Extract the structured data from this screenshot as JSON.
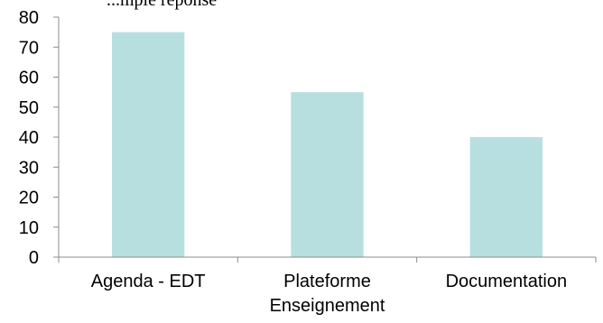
{
  "top_text_fragment": "...mple réponse",
  "chart_data": {
    "type": "bar",
    "categories": [
      [
        "Agenda - EDT"
      ],
      [
        "Plateforme",
        "Enseignement"
      ],
      [
        "Documentation"
      ]
    ],
    "values": [
      75,
      55,
      40
    ],
    "ylim": [
      0,
      80
    ],
    "yticks": [
      0,
      10,
      20,
      30,
      40,
      50,
      60,
      70,
      80
    ],
    "grid": false,
    "legend": "none",
    "colors": {
      "bar": "#b7dfe0",
      "axis": "#8c8c8c",
      "text": "#000000"
    }
  }
}
